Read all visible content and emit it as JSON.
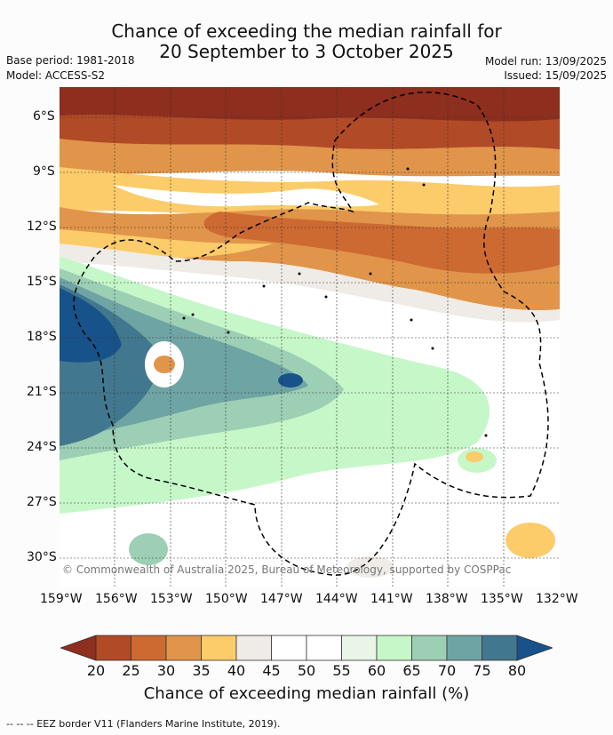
{
  "header": {
    "title_line1": "Chance of exceeding the median rainfall for",
    "title_line2": "20 September to 3 October 2025",
    "base_period": "Base period: 1981-2018",
    "model": "Model: ACCESS-S2",
    "model_run": "Model run: 13/09/2025",
    "issued": "Issued: 15/09/2025"
  },
  "map": {
    "lat_labels": [
      "6°S",
      "9°S",
      "12°S",
      "15°S",
      "18°S",
      "21°S",
      "24°S",
      "27°S",
      "30°S"
    ],
    "lon_labels": [
      "159°W",
      "156°W",
      "153°W",
      "150°W",
      "147°W",
      "144°W",
      "141°W",
      "138°W",
      "135°W",
      "132°W"
    ],
    "copyright": "© Commonwealth of Australia 2025, Bureau of Meteorology, supported by COSPPac"
  },
  "colorbar": {
    "ticks": [
      "20",
      "25",
      "30",
      "35",
      "40",
      "45",
      "50",
      "55",
      "60",
      "65",
      "70",
      "75",
      "80"
    ],
    "colors": [
      "#8e2e1e",
      "#b14a26",
      "#cc6a32",
      "#e0954a",
      "#fccb6a",
      "#efebe6",
      "#ffffff",
      "#ffffff",
      "#e9f5e8",
      "#c6f7c9",
      "#9ccfb4",
      "#6fa4a4",
      "#42788f",
      "#17528b"
    ],
    "label": "Chance of exceeding median rainfall (%)"
  },
  "footer": {
    "legend": "--  --  -- EEZ border V11 (Flanders Marine Institute, 2019)."
  }
}
